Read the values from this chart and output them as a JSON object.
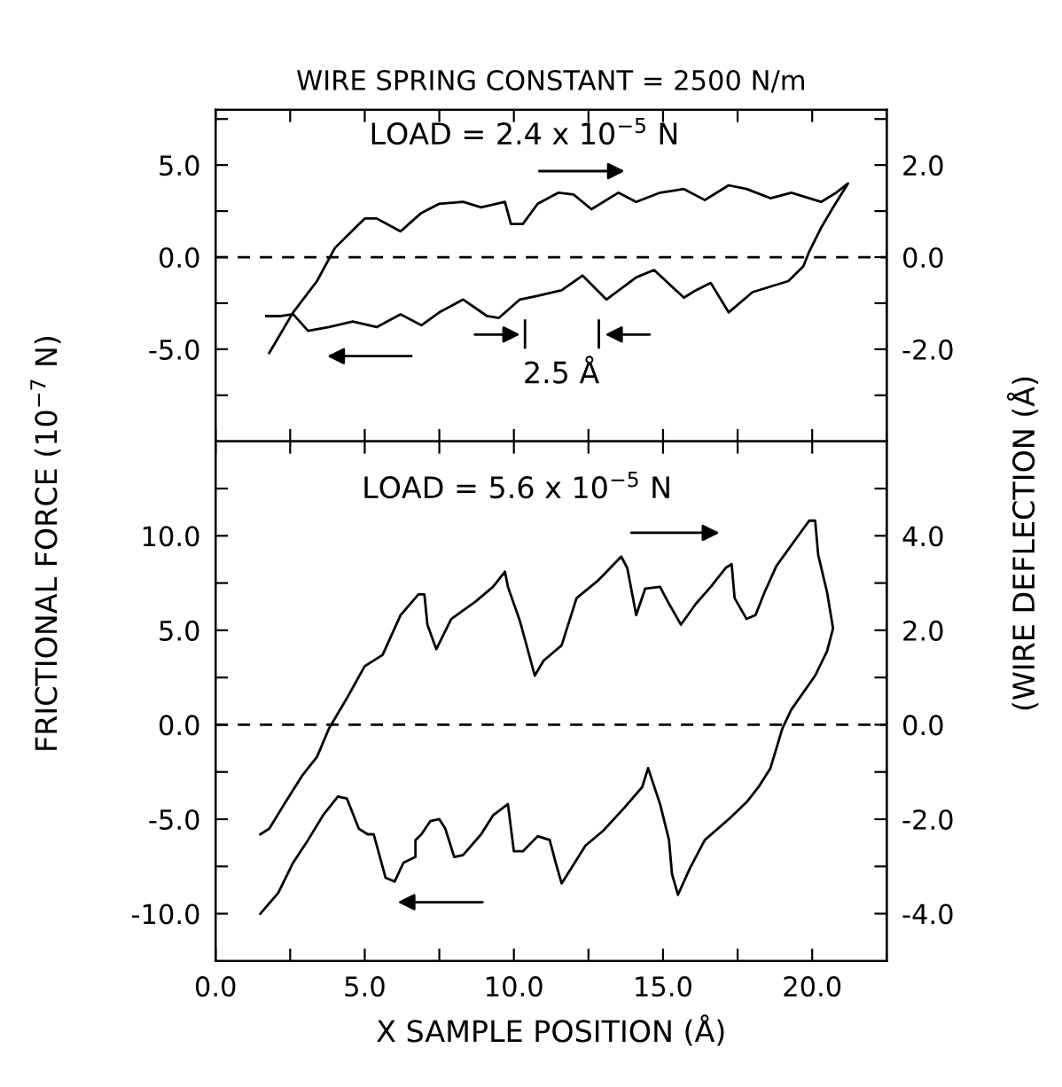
{
  "chart_data": [
    {
      "type": "line",
      "title": "WIRE SPRING CONSTANT = 2500 N/m",
      "ylabel": "FRICTIONAL FORCE (10$^{−7}$ N)",
      "y2label": "(WIRE DEFLECTION (Å)",
      "annotations": [
        "LOAD = 2.4 x 10$^{−5}$ N",
        "2.5 Å"
      ],
      "series": [
        {
          "color": "#000000",
          "x": [
            1.8,
            2.6,
            3.4,
            4.0,
            5.0,
            5.4,
            6.2,
            6.9,
            7.5,
            8.3,
            8.9,
            9.7,
            9.9,
            10.3,
            10.8,
            11.5,
            12.0,
            12.6,
            13.5,
            14.1,
            14.9,
            15.7,
            16.4,
            17.2,
            17.8,
            18.6,
            19.3,
            20.3,
            20.8,
            21.2,
            20.7,
            20.3,
            19.9,
            19.7,
            19.2,
            18.0,
            17.2,
            16.6,
            16.1,
            15.7,
            14.7,
            14.1,
            13.1,
            12.3,
            11.6,
            10.8,
            10.2,
            9.5,
            9.1,
            8.3,
            7.5,
            6.9,
            6.2,
            5.4,
            4.6,
            3.8,
            3.1,
            2.6,
            2.2,
            1.7
          ],
          "values": [
            -5.2,
            -3.0,
            -1.3,
            0.5,
            2.1,
            2.1,
            1.4,
            2.4,
            2.9,
            3.0,
            2.7,
            3.0,
            1.8,
            1.8,
            2.9,
            3.5,
            3.4,
            2.6,
            3.5,
            3.0,
            3.5,
            3.7,
            3.1,
            3.9,
            3.7,
            3.2,
            3.5,
            3.0,
            3.5,
            4.0,
            2.7,
            1.6,
            0.3,
            -0.5,
            -1.3,
            -1.9,
            -3.0,
            -1.4,
            -1.8,
            -2.2,
            -0.7,
            -1.1,
            -2.3,
            -1.0,
            -1.8,
            -2.1,
            -2.3,
            -3.3,
            -3.2,
            -2.3,
            -3.0,
            -3.7,
            -3.1,
            -3.8,
            -3.5,
            -3.8,
            -4.0,
            -3.1,
            -3.2,
            -3.2
          ]
        }
      ],
      "xlim": [
        0,
        22.5
      ],
      "xticks": [
        {
          "value": 0,
          "label": null
        },
        {
          "value": 2.5,
          "label": null
        },
        {
          "value": 5,
          "label": null
        },
        {
          "value": 7.5,
          "label": null
        },
        {
          "value": 10,
          "label": null
        },
        {
          "value": 12.5,
          "label": null
        },
        {
          "value": 15,
          "label": null
        },
        {
          "value": 17.5,
          "label": null
        },
        {
          "value": 20,
          "label": null
        }
      ],
      "ylim": [
        -10,
        8
      ],
      "yticks": [
        {
          "value": -7.5,
          "label": null
        },
        {
          "value": -5,
          "label": "-5.0"
        },
        {
          "value": -2.5,
          "label": null
        },
        {
          "value": 0,
          "label": "0.0"
        },
        {
          "value": 2.5,
          "label": null
        },
        {
          "value": 5,
          "label": "5.0"
        },
        {
          "value": 7.5,
          "label": null
        }
      ],
      "y2lim": [
        -4,
        3.2
      ],
      "y2ticks": [
        {
          "value": -3,
          "label": null
        },
        {
          "value": -2,
          "label": "-2.0"
        },
        {
          "value": -1,
          "label": null
        },
        {
          "value": 0,
          "label": "0.0"
        },
        {
          "value": 1,
          "label": null
        },
        {
          "value": 2,
          "label": "2.0"
        },
        {
          "value": 3,
          "label": null
        }
      ],
      "ref_lines": [
        {
          "axis": "y",
          "value": 0,
          "line_style": "dashed",
          "color": "#000000"
        }
      ],
      "tick_labels": "y",
      "grid": false,
      "legend": false,
      "marker": "none",
      "line_style": "solid"
    },
    {
      "type": "line",
      "xlabel": "X SAMPLE POSITION (Å)",
      "annotations": [
        "LOAD = 5.6 x 10$^{−5}$ N"
      ],
      "series": [
        {
          "color": "#000000",
          "x": [
            1.5,
            1.8,
            2.3,
            2.9,
            3.4,
            3.8,
            4.4,
            5.0,
            5.6,
            6.2,
            6.8,
            7.0,
            7.1,
            7.4,
            7.9,
            8.7,
            9.3,
            9.7,
            9.8,
            10.2,
            10.7,
            11.0,
            11.6,
            12.1,
            12.8,
            13.6,
            13.8,
            14.1,
            14.4,
            14.9,
            15.2,
            15.6,
            16.1,
            16.6,
            17.1,
            17.3,
            17.4,
            17.8,
            18.1,
            18.4,
            18.8,
            19.3,
            19.9,
            20.1,
            20.2,
            20.5,
            20.7,
            20.5,
            20.1,
            19.3,
            19.0,
            18.6,
            18.2,
            17.8,
            17.2,
            16.4,
            15.9,
            15.5,
            15.3,
            15.2,
            14.9,
            14.5,
            14.3,
            13.7,
            13.0,
            12.4,
            11.6,
            11.4,
            11.2,
            10.8,
            10.3,
            10.0,
            9.8,
            9.3,
            8.9,
            8.3,
            8.0,
            7.7,
            7.5,
            7.2,
            6.9,
            6.7,
            6.7,
            6.3,
            6.0,
            5.7,
            5.3,
            5.1,
            4.8,
            4.4,
            4.1,
            3.6,
            3.1,
            2.6,
            2.1,
            1.5
          ],
          "values": [
            -5.8,
            -5.5,
            -4.2,
            -2.7,
            -1.7,
            -0.2,
            1.4,
            3.1,
            3.7,
            5.8,
            6.9,
            6.9,
            5.3,
            4.0,
            5.6,
            6.5,
            7.3,
            8.1,
            7.3,
            5.5,
            2.6,
            3.4,
            4.2,
            6.7,
            7.6,
            8.9,
            8.3,
            5.8,
            7.2,
            7.3,
            6.4,
            5.3,
            6.4,
            7.3,
            8.3,
            8.5,
            6.7,
            5.6,
            5.8,
            7.0,
            8.4,
            9.5,
            10.8,
            10.8,
            9.0,
            7.0,
            5.1,
            3.9,
            2.6,
            0.8,
            -0.2,
            -2.3,
            -3.3,
            -4.1,
            -5.0,
            -6.1,
            -7.6,
            -9.0,
            -7.9,
            -6.1,
            -4.2,
            -2.3,
            -3.3,
            -4.4,
            -5.6,
            -6.4,
            -8.4,
            -7.3,
            -6.1,
            -5.9,
            -6.7,
            -6.7,
            -4.2,
            -4.8,
            -5.8,
            -6.9,
            -7.0,
            -5.5,
            -5.0,
            -5.1,
            -5.8,
            -6.1,
            -7.0,
            -7.3,
            -8.3,
            -8.1,
            -5.8,
            -5.8,
            -5.5,
            -3.9,
            -3.8,
            -4.8,
            -6.1,
            -7.3,
            -8.9,
            -10.0
          ]
        }
      ],
      "xlim": [
        0,
        22.5
      ],
      "xticks": [
        {
          "value": 0,
          "label": "0.0"
        },
        {
          "value": 2.5,
          "label": null
        },
        {
          "value": 5,
          "label": "5.0"
        },
        {
          "value": 7.5,
          "label": null
        },
        {
          "value": 10,
          "label": "10.0"
        },
        {
          "value": 12.5,
          "label": null
        },
        {
          "value": 15,
          "label": "15.0"
        },
        {
          "value": 17.5,
          "label": null
        },
        {
          "value": 20,
          "label": "20.0"
        }
      ],
      "ylim": [
        -12.5,
        15
      ],
      "yticks": [
        {
          "value": -10,
          "label": "-10.0"
        },
        {
          "value": -7.5,
          "label": null
        },
        {
          "value": -5,
          "label": "-5.0"
        },
        {
          "value": -2.5,
          "label": null
        },
        {
          "value": 0,
          "label": "0.0"
        },
        {
          "value": 2.5,
          "label": null
        },
        {
          "value": 5,
          "label": "5.0"
        },
        {
          "value": 7.5,
          "label": null
        },
        {
          "value": 10,
          "label": "10.0"
        },
        {
          "value": 12.5,
          "label": null
        }
      ],
      "y2lim": [
        -5,
        6
      ],
      "y2ticks": [
        {
          "value": -4,
          "label": "-4.0"
        },
        {
          "value": -3,
          "label": null
        },
        {
          "value": -2,
          "label": "-2.0"
        },
        {
          "value": -1,
          "label": null
        },
        {
          "value": 0,
          "label": "0.0"
        },
        {
          "value": 1,
          "label": null
        },
        {
          "value": 2,
          "label": "2.0"
        },
        {
          "value": 3,
          "label": null
        },
        {
          "value": 4,
          "label": "4.0"
        },
        {
          "value": 5,
          "label": null
        }
      ],
      "ref_lines": [
        {
          "axis": "y",
          "value": 0,
          "line_style": "dashed",
          "color": "#000000"
        }
      ],
      "grid": false,
      "legend": false,
      "marker": "none",
      "line_style": "solid"
    }
  ]
}
